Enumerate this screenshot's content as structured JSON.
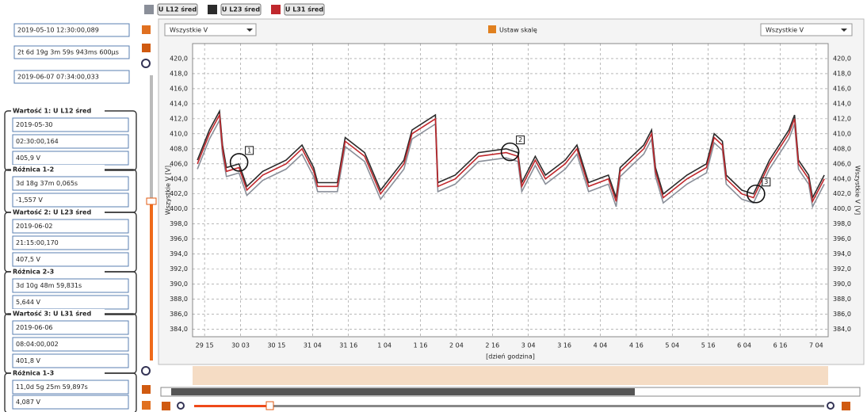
{
  "left_panel": {
    "range_start": "2019-05-10 12:30:00,089",
    "duration": "2t 6d 19g 3m 59s 943ms 600µs",
    "range_end": "2019-06-07 07:34:00,033",
    "groups": [
      {
        "title": "Wartość 1: U L12 śred",
        "lines": [
          "2019-05-30",
          "02:30:00,164",
          "405,9 V"
        ]
      },
      {
        "title": "Różnica 1-2",
        "lines": [
          "3d 18g 37m 0,065s",
          "-1,557 V"
        ]
      },
      {
        "title": "Wartość 2: U L23 śred",
        "lines": [
          "2019-06-02",
          "21:15:00,170",
          "407,5 V"
        ]
      },
      {
        "title": "Różnica 2-3",
        "lines": [
          "3d 10g 48m 59,831s",
          "5,644 V"
        ]
      },
      {
        "title": "Wartość 3: U L31 śred",
        "lines": [
          "2019-06-06",
          "08:04:00,002",
          "401,8 V"
        ]
      },
      {
        "title": "Różnica 1-3",
        "lines": [
          "11,0d 5g 25m 59,897s",
          "4,087 V"
        ]
      }
    ]
  },
  "toolbar": {
    "left_select": "Wszystkie V",
    "scale_button": "Ustaw skalę",
    "right_select": "Wszystkie V"
  },
  "chart_data": {
    "type": "line",
    "x_label": "[dzień godzina]",
    "y_label": "Wszystkie V [V]",
    "grid": true,
    "xlim": [
      -4,
      208
    ],
    "ylim": [
      383,
      422
    ],
    "xticks": [
      {
        "value": 0,
        "label": "29 15"
      },
      {
        "value": 12,
        "label": "30 03"
      },
      {
        "value": 24,
        "label": "30 15"
      },
      {
        "value": 36,
        "label": "31 04"
      },
      {
        "value": 48,
        "label": "31 16"
      },
      {
        "value": 60,
        "label": "1 04"
      },
      {
        "value": 72,
        "label": "1 16"
      },
      {
        "value": 84,
        "label": "2 04"
      },
      {
        "value": 96,
        "label": "2 16"
      },
      {
        "value": 108,
        "label": "3 04"
      },
      {
        "value": 120,
        "label": "3 16"
      },
      {
        "value": 132,
        "label": "4 04"
      },
      {
        "value": 144,
        "label": "4 16"
      },
      {
        "value": 156,
        "label": "5 04"
      },
      {
        "value": 168,
        "label": "5 16"
      },
      {
        "value": 180,
        "label": "6 04"
      },
      {
        "value": 192,
        "label": "6 16"
      },
      {
        "value": 204,
        "label": "7 04"
      }
    ],
    "yticks": [
      {
        "value": 384,
        "label": "384,0"
      },
      {
        "value": 386,
        "label": "386,0"
      },
      {
        "value": 388,
        "label": "388,0"
      },
      {
        "value": 390,
        "label": "390,0"
      },
      {
        "value": 392,
        "label": "392,0"
      },
      {
        "value": 394,
        "label": "394,0"
      },
      {
        "value": 396,
        "label": "396,0"
      },
      {
        "value": 398,
        "label": "398,0"
      },
      {
        "value": 400,
        "label": "400,0"
      },
      {
        "value": 402,
        "label": "402,0"
      },
      {
        "value": 404,
        "label": "404,0"
      },
      {
        "value": 406,
        "label": "406,0"
      },
      {
        "value": 408,
        "label": "408,0"
      },
      {
        "value": 410,
        "label": "410,0"
      },
      {
        "value": 412,
        "label": "412,0"
      },
      {
        "value": 414,
        "label": "414,0"
      },
      {
        "value": 416,
        "label": "416,0"
      },
      {
        "value": 418,
        "label": "418,0"
      },
      {
        "value": 420,
        "label": "420,0"
      }
    ],
    "x": [
      -2.4,
      1.6,
      5.0,
      6.0,
      7.3,
      11.5,
      14.1,
      19.4,
      27.2,
      32.5,
      36.4,
      37.7,
      44.3,
      46.9,
      53.4,
      58.7,
      66.5,
      69.2,
      77.0,
      77.8,
      83.6,
      91.4,
      100.6,
      104.5,
      105.8,
      110.3,
      113.7,
      120.3,
      124.2,
      128.1,
      134.7,
      137.3,
      138.6,
      146.5,
      149.1,
      150.4,
      153.0,
      160.9,
      167.4,
      170.0,
      172.7,
      174.0,
      179.2,
      183.1,
      188.4,
      194.9,
      196.8,
      198.1,
      201.5,
      202.8,
      206.7
    ],
    "series": [
      {
        "name": "U L12 śred",
        "color": "#8a8f99",
        "values": [
          405.3,
          409.3,
          411.8,
          407.3,
          404.3,
          404.8,
          401.8,
          403.8,
          405.3,
          407.3,
          404.3,
          402.3,
          402.3,
          408.3,
          406.3,
          401.3,
          405.3,
          409.3,
          411.3,
          402.3,
          403.3,
          406.3,
          406.8,
          406.3,
          402.3,
          405.8,
          403.3,
          405.3,
          407.3,
          402.3,
          403.3,
          400.3,
          404.3,
          407.3,
          409.3,
          404.3,
          400.8,
          403.3,
          404.8,
          408.8,
          407.8,
          403.3,
          401.3,
          400.8,
          405.3,
          409.3,
          411.3,
          405.3,
          403.3,
          400.3,
          403.3
        ]
      },
      {
        "name": "U L23 śred",
        "color": "#2b2b2b",
        "values": [
          406.5,
          410.5,
          413,
          408.5,
          405.5,
          406,
          403,
          405,
          406.5,
          408.5,
          405.5,
          403.5,
          403.5,
          409.5,
          407.5,
          402.5,
          406.5,
          410.5,
          412.5,
          403.5,
          404.5,
          407.5,
          408,
          407.5,
          403.5,
          407,
          404.5,
          406.5,
          408.5,
          403.5,
          404.5,
          401.5,
          405.5,
          408.5,
          410.5,
          405.5,
          402,
          404.5,
          406,
          410,
          409,
          404.5,
          402.5,
          402,
          406.5,
          410.5,
          412.5,
          406.5,
          404.5,
          401.5,
          404.5
        ]
      },
      {
        "name": "U L31 śred",
        "color": "#c0282d",
        "values": [
          406,
          410,
          412.5,
          408,
          405,
          405.5,
          402.5,
          404.5,
          406,
          408,
          405,
          403,
          403,
          409,
          407,
          402,
          406,
          410,
          412,
          403,
          404,
          407,
          407.5,
          407,
          403,
          406.5,
          404,
          406,
          408,
          403,
          404,
          401,
          405,
          408,
          410,
          405,
          401.5,
          404,
          405.5,
          409.5,
          408.5,
          404,
          402,
          401.5,
          406,
          410,
          412,
          406,
          404,
          401,
          404
        ]
      }
    ],
    "annotations": [
      {
        "label": "1",
        "x": 11.5,
        "y": 406.2
      },
      {
        "label": "2",
        "x": 101.9,
        "y": 407.6
      },
      {
        "label": "3",
        "x": 183.9,
        "y": 402.0
      }
    ]
  }
}
